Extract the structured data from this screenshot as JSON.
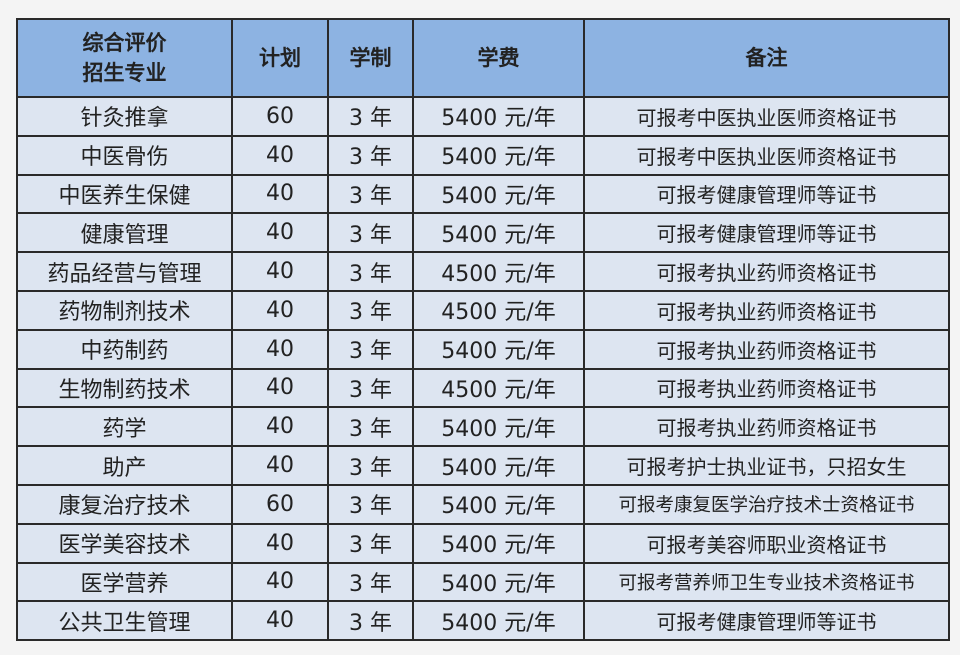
{
  "table": {
    "headers": [
      "综合评价\n招生专业",
      "计划",
      "学制",
      "学费",
      "备注"
    ],
    "header_line1": "综合评价",
    "header_line2": "招生专业",
    "rows": [
      [
        "针灸推拿",
        "60",
        "3 年",
        "5400 元/年",
        "可报考中医执业医师资格证书"
      ],
      [
        "中医骨伤",
        "40",
        "3 年",
        "5400 元/年",
        "可报考中医执业医师资格证书"
      ],
      [
        "中医养生保健",
        "40",
        "3 年",
        "5400 元/年",
        "可报考健康管理师等证书"
      ],
      [
        "健康管理",
        "40",
        "3 年",
        "5400 元/年",
        "可报考健康管理师等证书"
      ],
      [
        "药品经营与管理",
        "40",
        "3 年",
        "4500 元/年",
        "可报考执业药师资格证书"
      ],
      [
        "药物制剂技术",
        "40",
        "3 年",
        "4500 元/年",
        "可报考执业药师资格证书"
      ],
      [
        "中药制药",
        "40",
        "3 年",
        "5400 元/年",
        "可报考执业药师资格证书"
      ],
      [
        "生物制药技术",
        "40",
        "3 年",
        "4500 元/年",
        "可报考执业药师资格证书"
      ],
      [
        "药学",
        "40",
        "3 年",
        "5400 元/年",
        "可报考执业药师资格证书"
      ],
      [
        "助产",
        "40",
        "3 年",
        "5400 元/年",
        "可报考护士执业证书，只招女生"
      ],
      [
        "康复治疗技术",
        "60",
        "3 年",
        "5400 元/年",
        "可报考康复医学治疗技术士资格证书"
      ],
      [
        "医学美容技术",
        "40",
        "3 年",
        "5400 元/年",
        "可报考美容师职业资格证书"
      ],
      [
        "医学营养",
        "40",
        "3 年",
        "5400 元/年",
        "可报考营养师卫生专业技术资格证书"
      ],
      [
        "公共卫生管理",
        "40",
        "3 年",
        "5400 元/年",
        "可报考健康管理师等证书"
      ]
    ]
  },
  "colors": {
    "header_bg": "#8db3e2",
    "row_bg": "#dde5f1",
    "border": "#2a2a2a"
  }
}
